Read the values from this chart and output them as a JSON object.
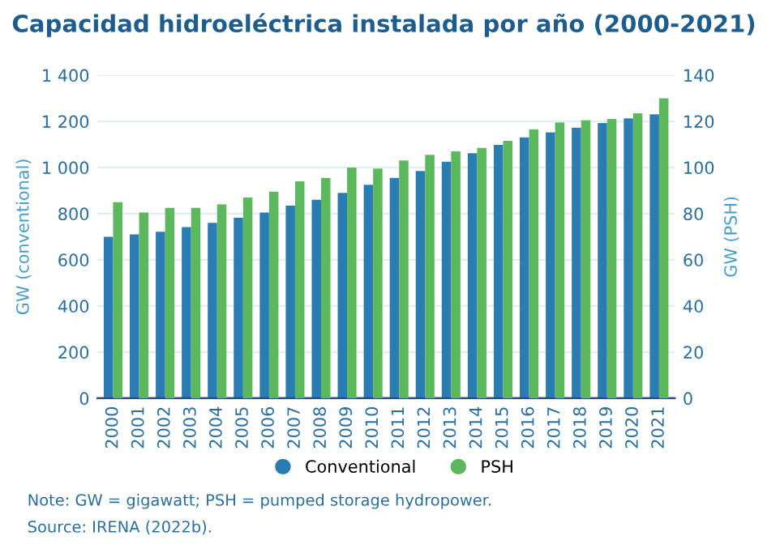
{
  "chart_data": {
    "type": "bar",
    "title": "Capacidad hidroeléctrica instalada por año (2000-2021)",
    "categories": [
      "2000",
      "2001",
      "2002",
      "2003",
      "2004",
      "2005",
      "2006",
      "2007",
      "2008",
      "2009",
      "2010",
      "2011",
      "2012",
      "2013",
      "2014",
      "2015",
      "2016",
      "2017",
      "2018",
      "2019",
      "2020",
      "2021"
    ],
    "series": [
      {
        "name": "Conventional",
        "color": "#2a7db3",
        "values": [
          700,
          710,
          722,
          742,
          760,
          782,
          805,
          835,
          860,
          890,
          925,
          955,
          985,
          1025,
          1062,
          1098,
          1130,
          1152,
          1172,
          1193,
          1213,
          1230
        ]
      },
      {
        "name": "PSH",
        "color": "#5cb85c",
        "axis": "y2",
        "values": [
          85,
          80.5,
          82.5,
          82.5,
          84,
          87,
          89.5,
          94,
          95.5,
          100,
          99.5,
          103,
          105.5,
          107,
          108.5,
          111.5,
          116.5,
          119.5,
          120.5,
          121,
          123.5,
          130
        ]
      }
    ],
    "ylabel": "GW (conventional)",
    "y2label": "GW (PSH)",
    "ylim": [
      0,
      1400
    ],
    "yticks": [
      0,
      {
        "value": 200,
        "label": "200"
      },
      {
        "value": 400,
        "label": "400"
      },
      {
        "value": 600,
        "label": "600"
      },
      {
        "value": 800,
        "label": "800"
      },
      {
        "value": 1000,
        "label": "1 000"
      },
      {
        "value": 1200,
        "label": "1 200"
      },
      {
        "value": 1400,
        "label": "1 400"
      }
    ],
    "y2lim": [
      0,
      140
    ],
    "y2ticks": [
      0,
      20,
      40,
      60,
      80,
      100,
      120,
      140
    ],
    "grid": "y",
    "legend": "bottom",
    "annotations": [
      "Note: GW = gigawatt; PSH = pumped storage hydropower.",
      "Source: IRENA (2022b)."
    ]
  }
}
